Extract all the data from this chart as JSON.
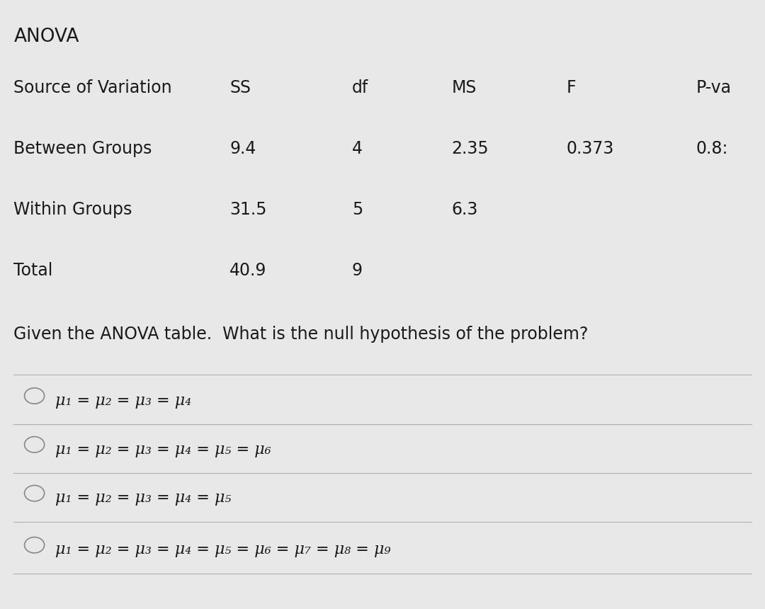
{
  "title": "ANOVA",
  "bg_color": "#e8e8e8",
  "content_bg": "#f0f0f0",
  "table_headers": [
    "Source of Variation",
    "SS",
    "df",
    "MS",
    "F",
    "P-va"
  ],
  "table_rows": [
    [
      "Between Groups",
      "9.4",
      "4",
      "2.35",
      "0.373",
      "0.8:"
    ],
    [
      "Within Groups",
      "31.5",
      "5",
      "6.3",
      "",
      ""
    ],
    [
      "Total",
      "40.9",
      "9",
      "",
      "",
      ""
    ]
  ],
  "question": "Given the ANOVA table.  What is the null hypothesis of the problem?",
  "options": [
    "μ₁ = μ₂ = μ₃ = μ₄",
    "μ₁ = μ₂ = μ₃ = μ₄ = μ₅ = μ₆",
    "μ₁ = μ₂ = μ₃ = μ₄ = μ₅",
    "μ₁ = μ₂ = μ₃ = μ₄ = μ₅ = μ₆ = μ₇ = μ₈ = μ₉"
  ],
  "text_color": "#1a1a1a",
  "header_fontsize": 17,
  "row_fontsize": 17,
  "question_fontsize": 17,
  "option_fontsize": 16,
  "title_fontsize": 19
}
